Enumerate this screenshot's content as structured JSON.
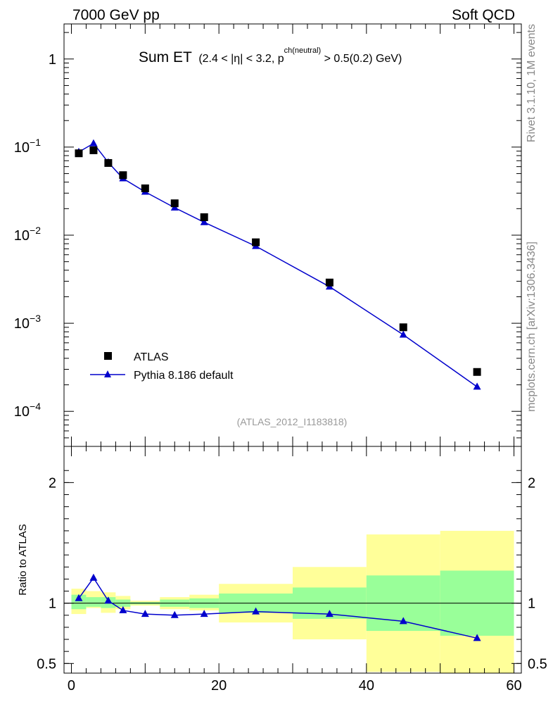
{
  "header": {
    "left": "7000 GeV pp",
    "right": "Soft QCD"
  },
  "plot_title": {
    "main": "Sum ET",
    "sub_pre": "(2.4 < |",
    "eta": "η",
    "sub_mid": "| < 3.2, p",
    "sup": "ch(neutral)",
    "sub_post": " > 0.5(0.2) GeV)"
  },
  "analysis_id": "(ATLAS_2012_I1183818)",
  "side_labels": {
    "top": "Rivet 3.1.10,  1M events",
    "bottom": "mcplots.cern.ch [arXiv:1306.3436]"
  },
  "legend": {
    "data_label": "ATLAS",
    "mc_label": "Pythia 8.186 default"
  },
  "colors": {
    "mc": "#0000cc",
    "band_inner": "#99ff99",
    "band_outer": "#ffff99",
    "data": "#000000"
  },
  "chart_data": [
    {
      "type": "scatter",
      "xlim": [
        -1,
        61
      ],
      "ylim": [
        4e-05,
        2.5
      ],
      "yscale": "log",
      "yticks": [
        {
          "v": 0.0001,
          "label": "10",
          "exp": "−4"
        },
        {
          "v": 0.001,
          "label": "10",
          "exp": "−3"
        },
        {
          "v": 0.01,
          "label": "10",
          "exp": "−2"
        },
        {
          "v": 0.1,
          "label": "10",
          "exp": "−1"
        },
        {
          "v": 1,
          "label": "1",
          "exp": ""
        }
      ],
      "series": [
        {
          "name": "ATLAS",
          "marker": "square",
          "x": [
            1,
            3,
            5,
            7,
            10,
            14,
            18,
            25,
            35,
            45,
            55
          ],
          "y": [
            0.085,
            0.092,
            0.066,
            0.048,
            0.034,
            0.023,
            0.016,
            0.0083,
            0.0029,
            0.0009,
            0.00028
          ]
        },
        {
          "name": "Pythia 8.186 default",
          "marker": "triangle",
          "x": [
            1,
            3,
            5,
            7,
            10,
            14,
            18,
            25,
            35,
            45,
            55
          ],
          "y": [
            0.088,
            0.11,
            0.067,
            0.044,
            0.031,
            0.0205,
            0.014,
            0.0075,
            0.0026,
            0.00074,
            0.00019
          ]
        }
      ]
    },
    {
      "type": "line",
      "ylabel": "Ratio to ATLAS",
      "xlim": [
        -1,
        61
      ],
      "ylim": [
        0.42,
        2.3
      ],
      "yticks": [
        {
          "v": 0.5,
          "label": "0.5"
        },
        {
          "v": 1,
          "label": "1"
        },
        {
          "v": 2,
          "label": "2"
        }
      ],
      "xticks": [
        {
          "v": 0,
          "label": "0"
        },
        {
          "v": 20,
          "label": "20"
        },
        {
          "v": 40,
          "label": "40"
        },
        {
          "v": 60,
          "label": "60"
        }
      ],
      "bins": [
        {
          "lo": 0,
          "hi": 2,
          "inner": [
            0.95,
            1.07
          ],
          "outer": [
            0.91,
            1.12
          ]
        },
        {
          "lo": 2,
          "hi": 4,
          "inner": [
            0.97,
            1.05
          ],
          "outer": [
            0.96,
            1.1
          ]
        },
        {
          "lo": 4,
          "hi": 6,
          "inner": [
            0.96,
            1.05
          ],
          "outer": [
            0.92,
            1.09
          ]
        },
        {
          "lo": 6,
          "hi": 8,
          "inner": [
            0.97,
            1.03
          ],
          "outer": [
            0.95,
            1.06
          ]
        },
        {
          "lo": 8,
          "hi": 12,
          "inner": [
            0.99,
            1.01
          ],
          "outer": [
            0.98,
            1.02
          ]
        },
        {
          "lo": 12,
          "hi": 16,
          "inner": [
            0.97,
            1.03
          ],
          "outer": [
            0.95,
            1.05
          ]
        },
        {
          "lo": 16,
          "hi": 20,
          "inner": [
            0.96,
            1.04
          ],
          "outer": [
            0.94,
            1.07
          ]
        },
        {
          "lo": 20,
          "hi": 30,
          "inner": [
            0.92,
            1.08
          ],
          "outer": [
            0.84,
            1.16
          ]
        },
        {
          "lo": 30,
          "hi": 40,
          "inner": [
            0.87,
            1.13
          ],
          "outer": [
            0.7,
            1.3
          ]
        },
        {
          "lo": 40,
          "hi": 50,
          "inner": [
            0.77,
            1.23
          ],
          "outer": [
            0.43,
            1.57
          ]
        },
        {
          "lo": 50,
          "hi": 60,
          "inner": [
            0.73,
            1.27
          ],
          "outer": [
            0.35,
            1.6
          ]
        }
      ],
      "series": [
        {
          "name": "Pythia 8.186 default",
          "marker": "triangle",
          "x": [
            1,
            3,
            5,
            7,
            10,
            14,
            18,
            25,
            35,
            45,
            55
          ],
          "y": [
            1.04,
            1.21,
            1.02,
            0.94,
            0.91,
            0.9,
            0.91,
            0.93,
            0.91,
            0.85,
            0.71
          ]
        }
      ]
    }
  ]
}
